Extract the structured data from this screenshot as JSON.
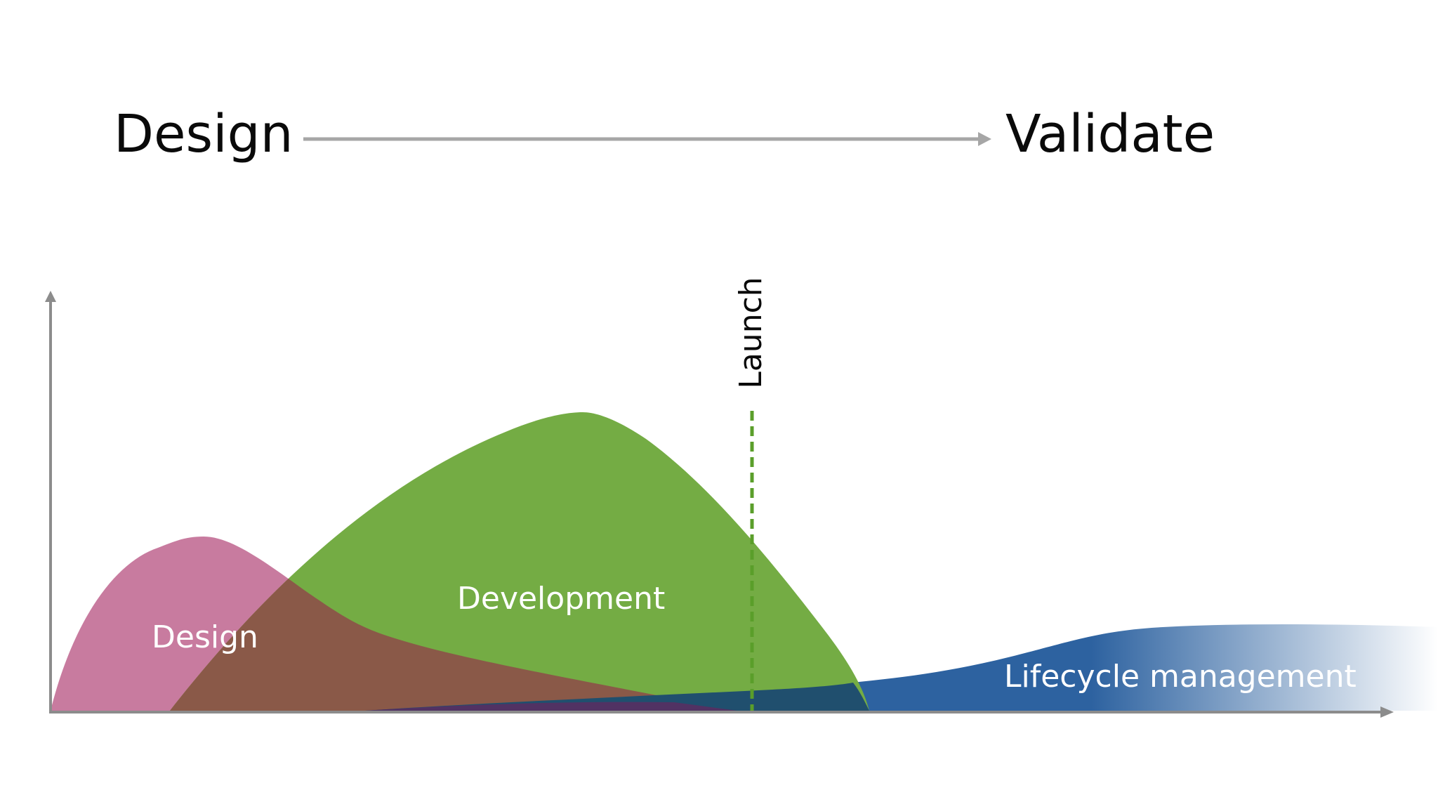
{
  "header": {
    "start_label": "Design",
    "end_label": "Validate"
  },
  "phases": {
    "design": {
      "label": "Design",
      "color": "#C87B9F"
    },
    "development": {
      "label": "Development",
      "color": "#74AC44"
    },
    "lifecycle": {
      "label": "Lifecycle management",
      "color": "#2D62A0"
    }
  },
  "milestone": {
    "label": "Launch",
    "color": "#5A9E2A"
  },
  "colors": {
    "overlap": "#8A5948",
    "axis": "#8C8C8C",
    "arrow": "#A6A6A6"
  }
}
